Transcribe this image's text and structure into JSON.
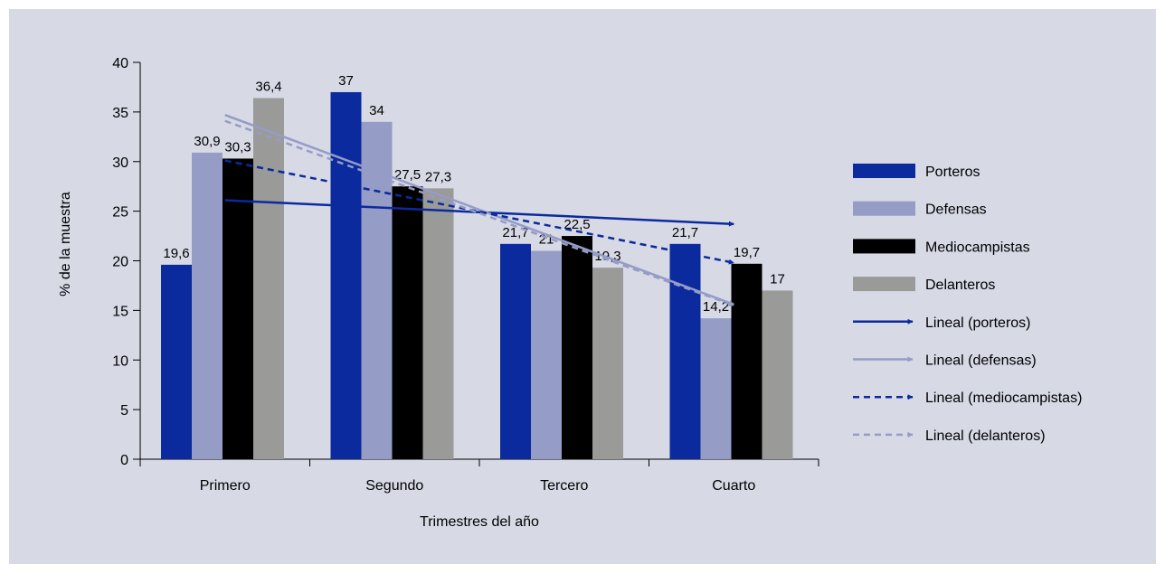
{
  "chart_data": {
    "type": "bar",
    "categories": [
      "Primero",
      "Segundo",
      "Tercero",
      "Cuarto"
    ],
    "series": [
      {
        "name": "Porteros",
        "values": [
          19.6,
          37,
          21.7,
          21.7
        ],
        "labels": [
          "19,6",
          "37",
          "21,7",
          "21,7"
        ],
        "color": "#0a2a9e"
      },
      {
        "name": "Defensas",
        "values": [
          30.9,
          34,
          21,
          14.2
        ],
        "labels": [
          "30,9",
          "34",
          "21",
          "14,2"
        ],
        "color": "#959cc6"
      },
      {
        "name": "Mediocampistas",
        "values": [
          30.3,
          27.5,
          22.5,
          19.7
        ],
        "labels": [
          "30,3",
          "27,5",
          "22,5",
          "19,7"
        ],
        "color": "#000000"
      },
      {
        "name": "Delanteros",
        "values": [
          36.4,
          27.3,
          19.3,
          17
        ],
        "labels": [
          "36,4",
          "27,3",
          "19,3",
          "17"
        ],
        "color": "#9a9a98"
      }
    ],
    "trendlines": [
      {
        "name": "Lineal (porteros)",
        "start": 26.1,
        "end": 23.7,
        "style": "solid",
        "color": "#0a2a9e"
      },
      {
        "name": "Lineal (defensas)",
        "start": 34.7,
        "end": 15.6,
        "style": "solid",
        "color": "#959cc6"
      },
      {
        "name": "Lineal (mediocampistas)",
        "start": 30.1,
        "end": 19.8,
        "style": "dashed",
        "color": "#0a2a9e"
      },
      {
        "name": "Lineal (delanteros)",
        "start": 34.1,
        "end": 15.5,
        "style": "dashed",
        "color": "#959cc6"
      }
    ],
    "xlabel": "Trimestres del año",
    "ylabel": "% de la muestra",
    "ylim": [
      0,
      40
    ],
    "yticks": [
      0,
      5,
      10,
      15,
      20,
      25,
      30,
      35,
      40
    ],
    "grid": false,
    "legend_position": "right"
  }
}
